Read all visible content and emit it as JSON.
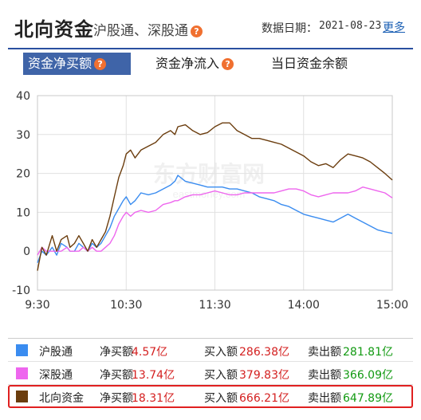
{
  "header": {
    "title": "北向资金",
    "subtitle": "沪股通、深股通",
    "date_label": "数据日期：",
    "date_value": "2021-08-23",
    "more_link": "更多"
  },
  "tabs": [
    {
      "label": "资金净买额",
      "active": true
    },
    {
      "label": "资金净流入",
      "active": false
    },
    {
      "label": "当日资金余额",
      "active": false
    }
  ],
  "watermark": {
    "cn": "东方财富网",
    "en": "eastmoney.com"
  },
  "colors": {
    "accent": "#3f64a8",
    "up": "#d42020",
    "down": "#129a12"
  },
  "chart_data": {
    "type": "line",
    "x_ticks": [
      "9:30",
      "10:30",
      "11:30",
      "14:00",
      "15:00"
    ],
    "y_ticks": [
      40,
      30,
      20,
      10,
      0,
      -10
    ],
    "ylim": [
      -10,
      40
    ],
    "grid": true,
    "x_unit": "minutes since open (0-240)",
    "series": [
      {
        "name": "沪股通",
        "color": "#3a8cf0",
        "x": [
          0,
          3,
          6,
          10,
          13,
          16,
          20,
          22,
          25,
          28,
          31,
          34,
          37,
          40,
          43,
          46,
          49,
          52,
          55,
          58,
          60,
          63,
          66,
          70,
          75,
          80,
          85,
          90,
          93,
          95,
          100,
          105,
          110,
          115,
          120,
          125,
          130,
          135,
          140,
          145,
          150,
          155,
          160,
          165,
          170,
          175,
          180,
          185,
          190,
          195,
          200,
          205,
          210,
          215,
          220,
          225,
          230,
          235,
          240
        ],
        "y": [
          -3,
          0,
          -1,
          1,
          -1,
          2,
          1,
          0,
          0,
          2,
          1,
          0,
          2,
          1,
          2,
          4,
          6,
          9,
          11,
          13,
          14,
          12,
          13,
          15,
          14.5,
          15,
          16,
          17,
          18,
          19.5,
          18,
          17.5,
          17,
          16.5,
          16.5,
          16.5,
          16,
          16,
          15.5,
          15,
          14,
          13.5,
          13,
          12,
          11.5,
          10.5,
          9.5,
          9,
          8.5,
          8,
          7.5,
          8.5,
          9.5,
          8.5,
          7.5,
          6.5,
          5.5,
          5,
          4.6
        ]
      },
      {
        "name": "深股通",
        "color": "#ee66ee",
        "x": [
          0,
          3,
          6,
          10,
          13,
          16,
          20,
          22,
          25,
          28,
          31,
          34,
          37,
          40,
          43,
          46,
          49,
          52,
          55,
          58,
          60,
          63,
          66,
          70,
          75,
          80,
          85,
          90,
          93,
          95,
          100,
          105,
          110,
          115,
          120,
          125,
          130,
          135,
          140,
          145,
          150,
          155,
          160,
          165,
          170,
          175,
          180,
          185,
          190,
          195,
          200,
          205,
          210,
          215,
          220,
          225,
          230,
          235,
          240
        ],
        "y": [
          -1,
          1,
          0,
          0,
          0,
          0,
          1,
          0,
          0,
          0,
          1,
          0,
          1,
          0,
          0,
          1,
          2,
          4,
          7,
          9,
          10,
          9,
          10,
          10.5,
          10,
          10.5,
          12,
          12.5,
          13,
          13,
          14,
          14.5,
          14.5,
          15,
          15.5,
          15,
          14.5,
          14.5,
          15,
          15,
          15,
          15,
          15,
          15.5,
          16,
          16,
          15.5,
          14.5,
          14,
          14.5,
          15,
          15,
          15,
          15.5,
          16.5,
          16,
          15.5,
          15,
          13.7
        ]
      },
      {
        "name": "北向资金",
        "color": "#6b3d0e",
        "x": [
          0,
          3,
          6,
          10,
          13,
          16,
          20,
          22,
          25,
          28,
          31,
          34,
          37,
          40,
          43,
          46,
          49,
          52,
          55,
          58,
          60,
          63,
          66,
          70,
          75,
          80,
          85,
          90,
          93,
          95,
          100,
          105,
          110,
          115,
          120,
          125,
          130,
          135,
          140,
          145,
          150,
          155,
          160,
          165,
          170,
          175,
          180,
          185,
          190,
          195,
          200,
          205,
          210,
          215,
          220,
          225,
          230,
          235,
          240
        ],
        "y": [
          -5,
          1,
          -1,
          4,
          0,
          3,
          4,
          1,
          2,
          4,
          2,
          0,
          3,
          1,
          3,
          5,
          9,
          14,
          19,
          22,
          25,
          26,
          24,
          26,
          27,
          28,
          30,
          31,
          30,
          32,
          32.5,
          31,
          30,
          30.5,
          32,
          33,
          33,
          31,
          30,
          29,
          29,
          28.5,
          28,
          27.5,
          26.5,
          25.5,
          24.5,
          23,
          22,
          22.5,
          21.5,
          23.5,
          25,
          24.5,
          24,
          23,
          21.5,
          20,
          18.3
        ]
      }
    ]
  },
  "legend": [
    {
      "name": "沪股通",
      "swatch": "#3a8cf0",
      "net_label": "净买额",
      "net_value": "4.57亿",
      "buy_label": "买入额",
      "buy_value": "286.38亿",
      "sell_label": "卖出额",
      "sell_value": "281.81亿",
      "highlight": false
    },
    {
      "name": "深股通",
      "swatch": "#ee66ee",
      "net_label": "净买额",
      "net_value": "13.74亿",
      "buy_label": "买入额",
      "buy_value": "379.83亿",
      "sell_label": "卖出额",
      "sell_value": "366.09亿",
      "highlight": false
    },
    {
      "name": "北向资金",
      "swatch": "#6b3d0e",
      "net_label": "净买额",
      "net_value": "18.31亿",
      "buy_label": "买入额",
      "buy_value": "666.21亿",
      "sell_label": "卖出额",
      "sell_value": "647.89亿",
      "highlight": true
    }
  ]
}
